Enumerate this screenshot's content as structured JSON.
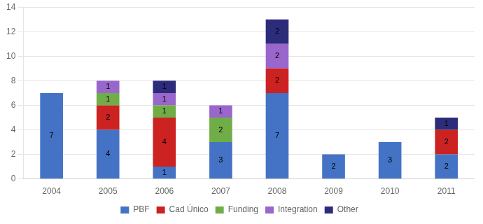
{
  "chart_data": {
    "type": "bar",
    "stacked": true,
    "data_labels": true,
    "grid": true,
    "legend": "bottom",
    "categories": [
      "2004",
      "2005",
      "2006",
      "2007",
      "2008",
      "2009",
      "2010",
      "2011"
    ],
    "series": [
      {
        "name": "PBF",
        "color": "#4472c4",
        "values": [
          7,
          4,
          1,
          3,
          7,
          2,
          3,
          2
        ]
      },
      {
        "name": "Cad Único",
        "color": "#cc2222",
        "values": [
          0,
          2,
          4,
          0,
          2,
          0,
          0,
          2
        ]
      },
      {
        "name": "Funding",
        "color": "#70ad47",
        "values": [
          0,
          1,
          1,
          2,
          0,
          0,
          0,
          0
        ]
      },
      {
        "name": "Integration",
        "color": "#9966cc",
        "values": [
          0,
          1,
          1,
          1,
          2,
          0,
          0,
          0
        ]
      },
      {
        "name": "Other",
        "color": "#2c2c7a",
        "values": [
          0,
          0,
          1,
          0,
          2,
          0,
          0,
          1
        ]
      }
    ],
    "ylim": [
      0,
      14
    ],
    "yticks": [
      0,
      2,
      4,
      6,
      8,
      10,
      12,
      14
    ]
  }
}
